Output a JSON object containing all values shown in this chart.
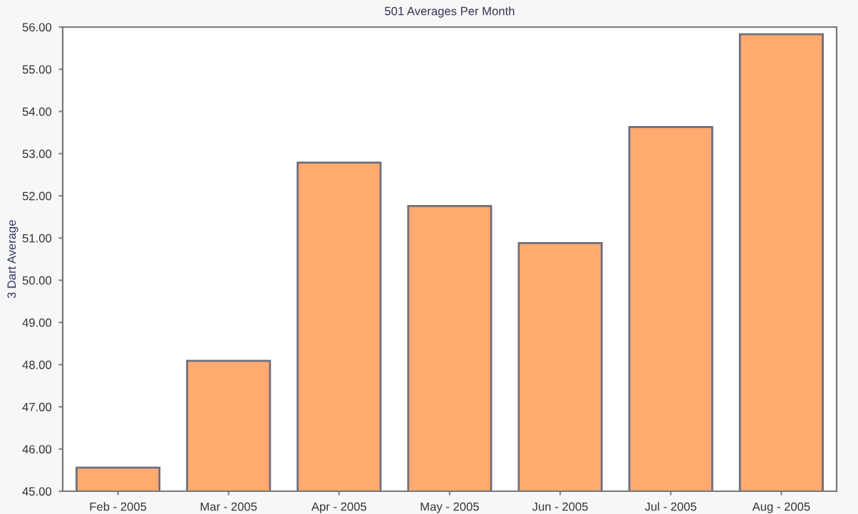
{
  "chart_data": {
    "type": "bar",
    "title": "501 Averages Per Month",
    "ylabel": "3 Dart Average",
    "categories": [
      "Feb - 2005",
      "Mar - 2005",
      "Apr - 2005",
      "May - 2005",
      "Jun - 2005",
      "Jul - 2005",
      "Aug - 2005"
    ],
    "values": [
      45.56,
      48.09,
      52.79,
      51.76,
      50.88,
      53.63,
      55.83
    ],
    "color": "#ffaa6e",
    "ylim": [
      45,
      56
    ],
    "yticks": [
      {
        "value": 45,
        "label": "45.00"
      },
      {
        "value": 46,
        "label": "46.00"
      },
      {
        "value": 47,
        "label": "47.00"
      },
      {
        "value": 48,
        "label": "48.00"
      },
      {
        "value": 49,
        "label": "49.00"
      },
      {
        "value": 50,
        "label": "50.00"
      },
      {
        "value": 51,
        "label": "51.00"
      },
      {
        "value": 52,
        "label": "52.00"
      },
      {
        "value": 53,
        "label": "53.00"
      },
      {
        "value": 54,
        "label": "54.00"
      },
      {
        "value": 55,
        "label": "55.00"
      },
      {
        "value": 56,
        "label": "56.00"
      }
    ],
    "grid": false
  }
}
